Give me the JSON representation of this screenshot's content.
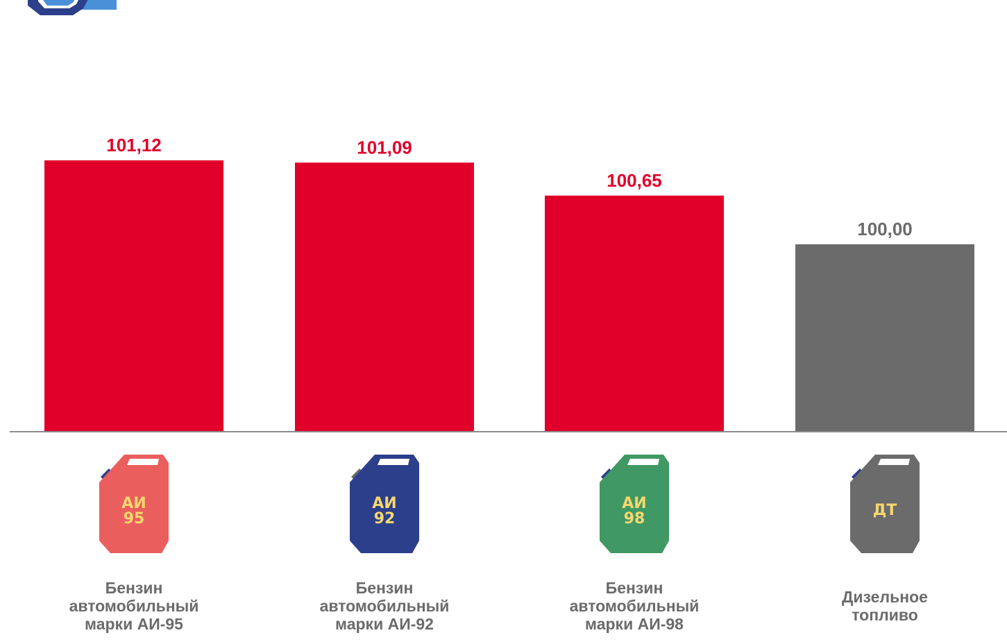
{
  "chart_data": {
    "type": "bar",
    "categories": [
      "Бензин\nавтомобильный\nмарки АИ-95",
      "Бензин\nавтомобильный\nмарки АИ-92",
      "Бензин\nавтомобильный\nмарки АИ-98",
      "Дизельное\nтопливо"
    ],
    "values": [
      101.12,
      101.09,
      100.65,
      100.0
    ],
    "value_labels": [
      "101,12",
      "101,09",
      "100,65",
      "100,00"
    ],
    "bar_colors": [
      "#e1002a",
      "#e1002a",
      "#e1002a",
      "#6b6b6b"
    ],
    "label_colors": [
      "#e1002a",
      "#e1002a",
      "#e1002a",
      "#6b6b6b"
    ],
    "title": "",
    "xlabel": "",
    "ylabel": "",
    "ylim": [
      97.5,
      101.5
    ],
    "grid": false
  },
  "cans": [
    {
      "icon": "fuel-canister-ai95-icon",
      "line1": "АИ",
      "line2": "95",
      "color": "#eb5e5e",
      "cap": "#2c3f8a"
    },
    {
      "icon": "fuel-canister-ai92-icon",
      "line1": "АИ",
      "line2": "92",
      "color": "#2c3f8a",
      "cap": "#6b6b6b"
    },
    {
      "icon": "fuel-canister-ai98-icon",
      "line1": "АИ",
      "line2": "98",
      "color": "#409964",
      "cap": "#2c3f8a"
    },
    {
      "icon": "fuel-canister-dt-icon",
      "line1": "ДТ",
      "line2": "",
      "color": "#6b6b6b",
      "cap": "#2c3f8a"
    }
  ],
  "can_text_color": "#f5d76e",
  "logo": {
    "icon": "brand-logo-icon",
    "dark": "#2c3f8a",
    "light": "#4a90d9"
  }
}
